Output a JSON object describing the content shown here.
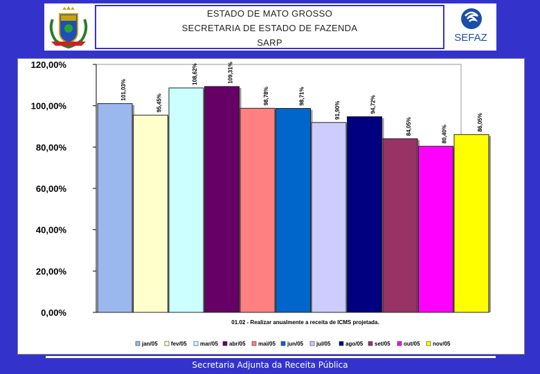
{
  "header": {
    "line1": "ESTADO DE MATO GROSSO",
    "line2": "SECRETARIA DE ESTADO DE FAZENDA",
    "line3": "SARP"
  },
  "logo": {
    "text": "SEFAZ"
  },
  "footer": {
    "text": "Secretaria Adjunta da Receita Pública"
  },
  "chart_data": {
    "type": "bar",
    "xlabel": "01.02 - Realizar anualmente a receita de ICMS projetada.",
    "ylim": [
      0,
      120
    ],
    "yticks": [
      "0,00%",
      "20,00%",
      "40,00%",
      "60,00%",
      "80,00%",
      "100,00%",
      "120,00%"
    ],
    "grid": false,
    "legend": "bottom",
    "categories": [
      "jan/05",
      "fev/05",
      "mar/05",
      "abr/05",
      "mai/05",
      "jun/05",
      "jul/05",
      "ago/05",
      "set/05",
      "out/05",
      "nov/05"
    ],
    "values": [
      101.03,
      95.45,
      108.62,
      109.31,
      98.78,
      98.71,
      91.9,
      94.72,
      84.05,
      80.4,
      86.05
    ],
    "labels": [
      "101,03%",
      "95,45%",
      "108,62%",
      "109,31%",
      "98,78%",
      "98,71%",
      "91,90%",
      "94,72%",
      "84,05%",
      "80,40%",
      "86,05%"
    ],
    "colors": [
      "#9ab8ee",
      "#ffffcc",
      "#ccffff",
      "#660066",
      "#ff8080",
      "#0066cc",
      "#ccccff",
      "#000080",
      "#993366",
      "#ff00ff",
      "#ffff00"
    ]
  }
}
